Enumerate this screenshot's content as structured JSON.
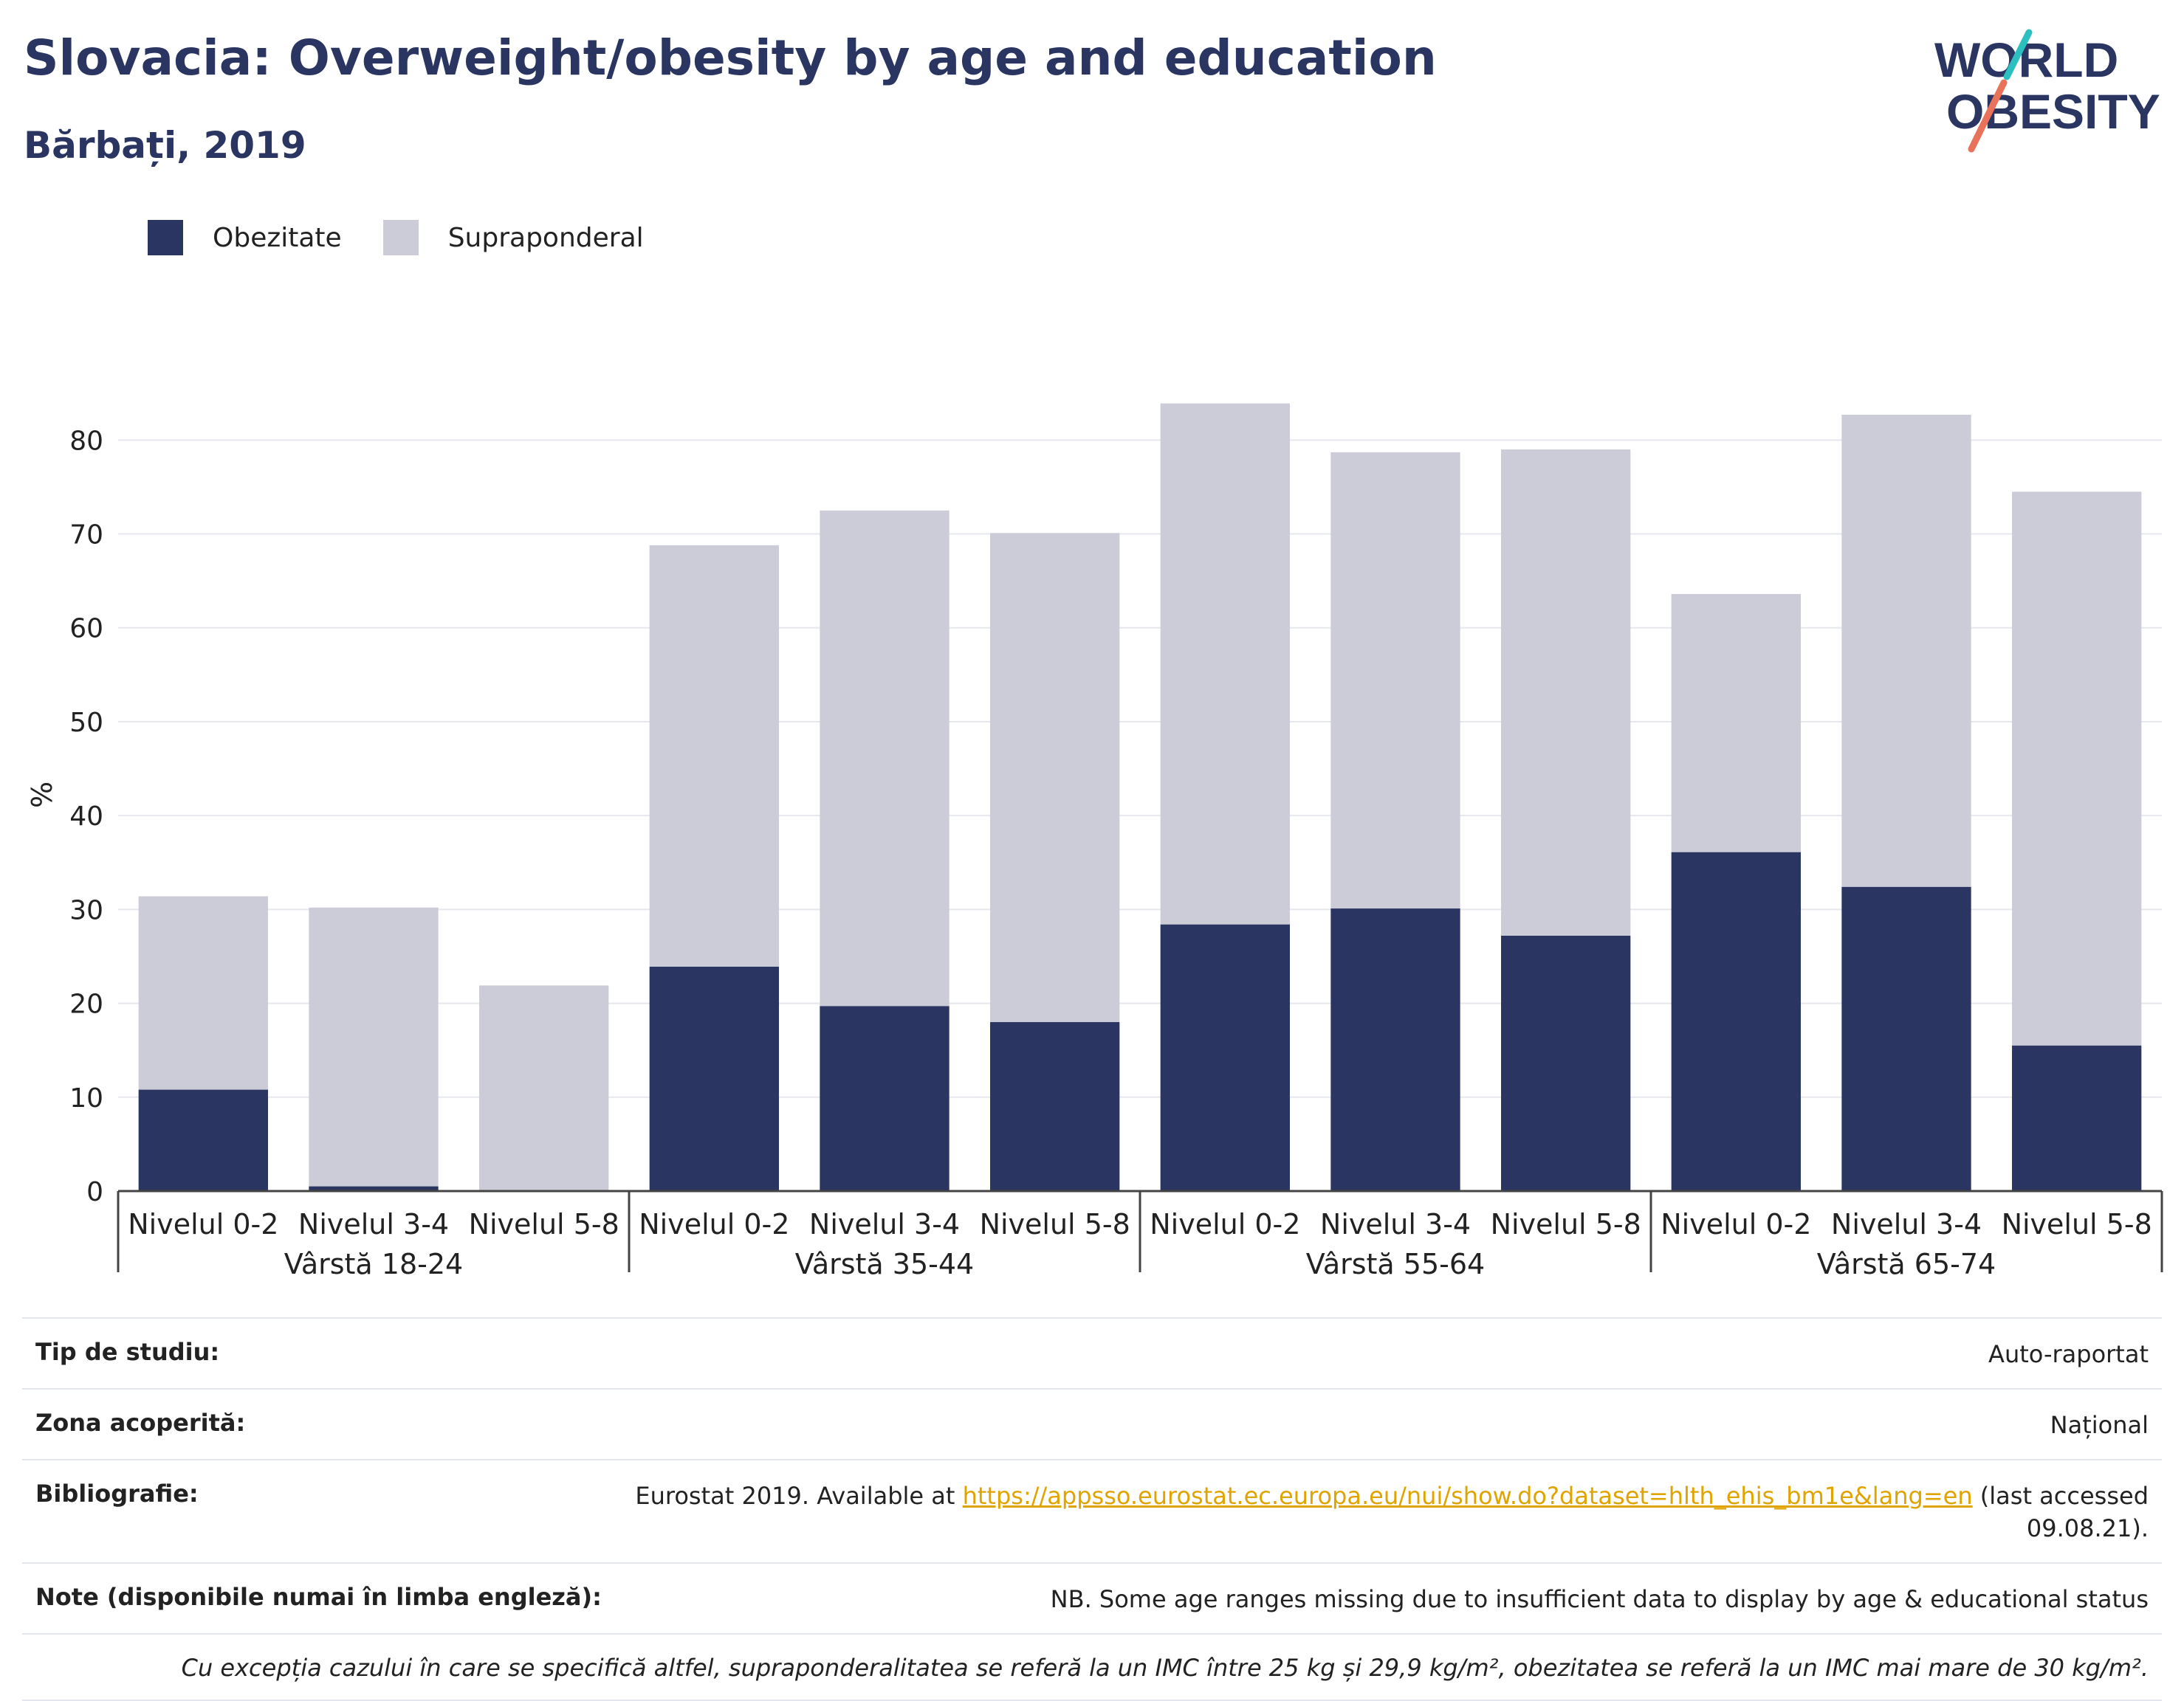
{
  "header": {
    "title": "Slovacia: Overweight/obesity by age and education",
    "subtitle": "Bărbați, 2019"
  },
  "logo": {
    "line1": "WORLD",
    "line2": "OBESITY"
  },
  "colors": {
    "obesity": "#2a3561",
    "overweight": "#cbccd8",
    "title": "#2a3561",
    "link": "#e0a400",
    "logo_teal": "#2bbfbf",
    "logo_coral": "#e8735a"
  },
  "chart_data": {
    "type": "bar",
    "stacked": true,
    "title": "",
    "ylabel": "%",
    "ylim": [
      0,
      86
    ],
    "yticks": [
      0,
      10,
      20,
      30,
      40,
      50,
      60,
      70,
      80
    ],
    "grid": true,
    "legend_position": "top-left",
    "groups": [
      "Vârstă 18-24",
      "Vârstă 35-44",
      "Vârstă 55-64",
      "Vârstă 65-74"
    ],
    "categories": [
      "Nivelul 0-2",
      "Nivelul 3-4",
      "Nivelul 5-8",
      "Nivelul 0-2",
      "Nivelul 3-4",
      "Nivelul 5-8",
      "Nivelul 0-2",
      "Nivelul 3-4",
      "Nivelul 5-8",
      "Nivelul 0-2",
      "Nivelul 3-4",
      "Nivelul 5-8"
    ],
    "series": [
      {
        "name": "Obezitate",
        "color": "#2a3561",
        "values": [
          10.8,
          0.5,
          0,
          23.9,
          19.7,
          18,
          28.4,
          30.1,
          27.2,
          36.1,
          32.4,
          15.5
        ]
      },
      {
        "name": "Supraponderal",
        "color": "#cbccd8",
        "values": [
          20.6,
          29.7,
          21.9,
          44.9,
          52.8,
          52.1,
          55.5,
          48.6,
          51.8,
          27.5,
          50.3,
          59
        ]
      }
    ]
  },
  "info": {
    "study_type": {
      "label": "Tip de studiu:",
      "value": "Auto-raportat"
    },
    "coverage": {
      "label": "Zona acoperită:",
      "value": "Național"
    },
    "bibliography": {
      "label": "Bibliografie:",
      "prefix": "Eurostat 2019. Available at ",
      "link": "https://appsso.eurostat.ec.europa.eu/nui/show.do?dataset=hlth_ehis_bm1e&lang=en",
      "suffix": " (last accessed 09.08.21)."
    },
    "notes": {
      "label": "Note (disponibile numai în limba engleză):",
      "value": "NB. Some age ranges missing due to insufficient data to display by age & educational status"
    },
    "footnote": "Cu excepția cazului în care se specifică altfel, supraponderalitatea se referă la un IMC între 25 kg și 29,9 kg/m², obezitatea se referă la un IMC mai mare de 30 kg/m²."
  }
}
